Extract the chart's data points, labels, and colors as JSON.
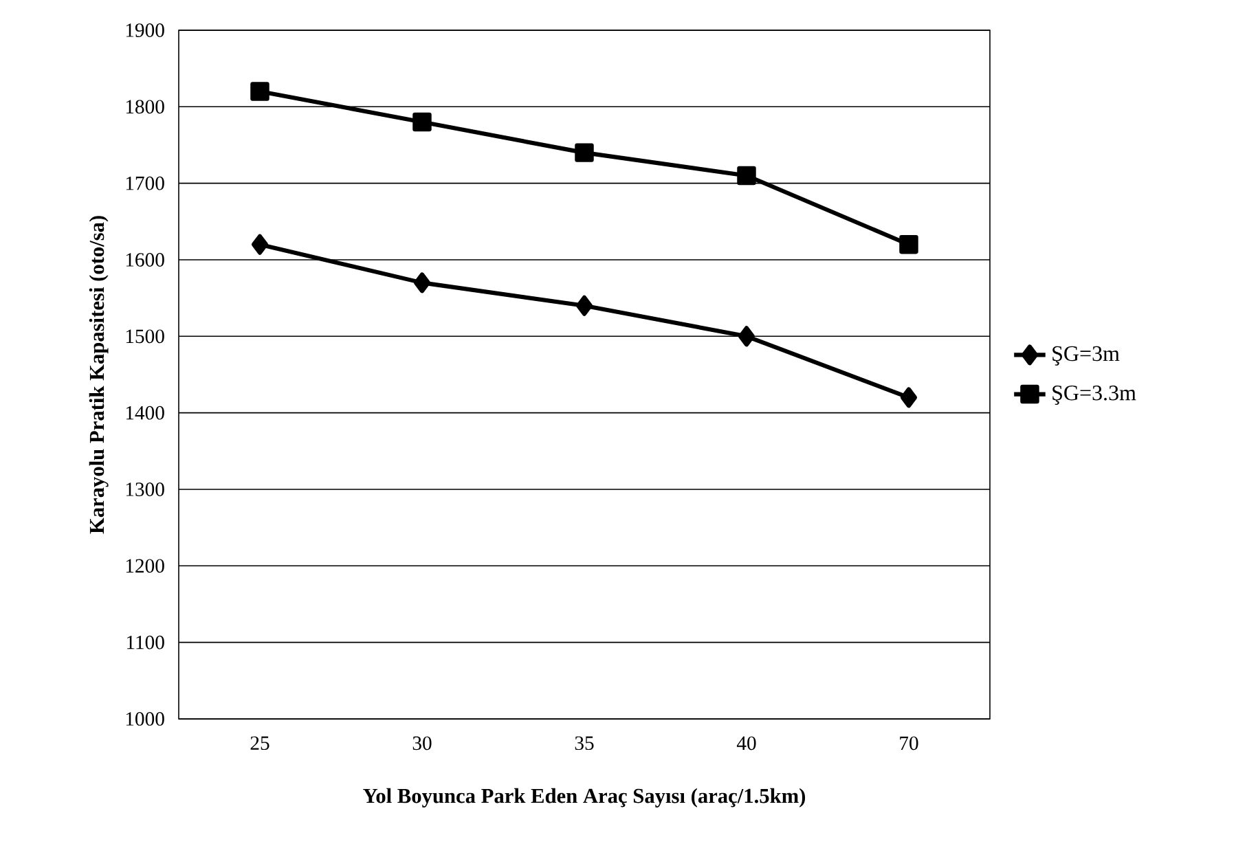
{
  "chart_data": {
    "type": "line",
    "xlabel": "Yol Boyunca Park Eden Araç Sayısı (araç/1.5km)",
    "ylabel": "Karayolu Pratik Kapasitesi (oto/sa)",
    "categories": [
      "25",
      "30",
      "35",
      "40",
      "70"
    ],
    "series": [
      {
        "name": "ŞG=3m",
        "color": "#000000",
        "marker": "diamond",
        "values": [
          1620,
          1570,
          1540,
          1500,
          1420
        ]
      },
      {
        "name": "ŞG=3.3m",
        "color": "#000000",
        "marker": "square",
        "values": [
          1820,
          1780,
          1740,
          1710,
          1620
        ]
      }
    ],
    "ylim": [
      1000,
      1900
    ],
    "yticks": [
      1000,
      1100,
      1200,
      1300,
      1400,
      1500,
      1600,
      1700,
      1800,
      1900
    ],
    "grid": "y",
    "legend": "right",
    "line_style": "solid"
  }
}
